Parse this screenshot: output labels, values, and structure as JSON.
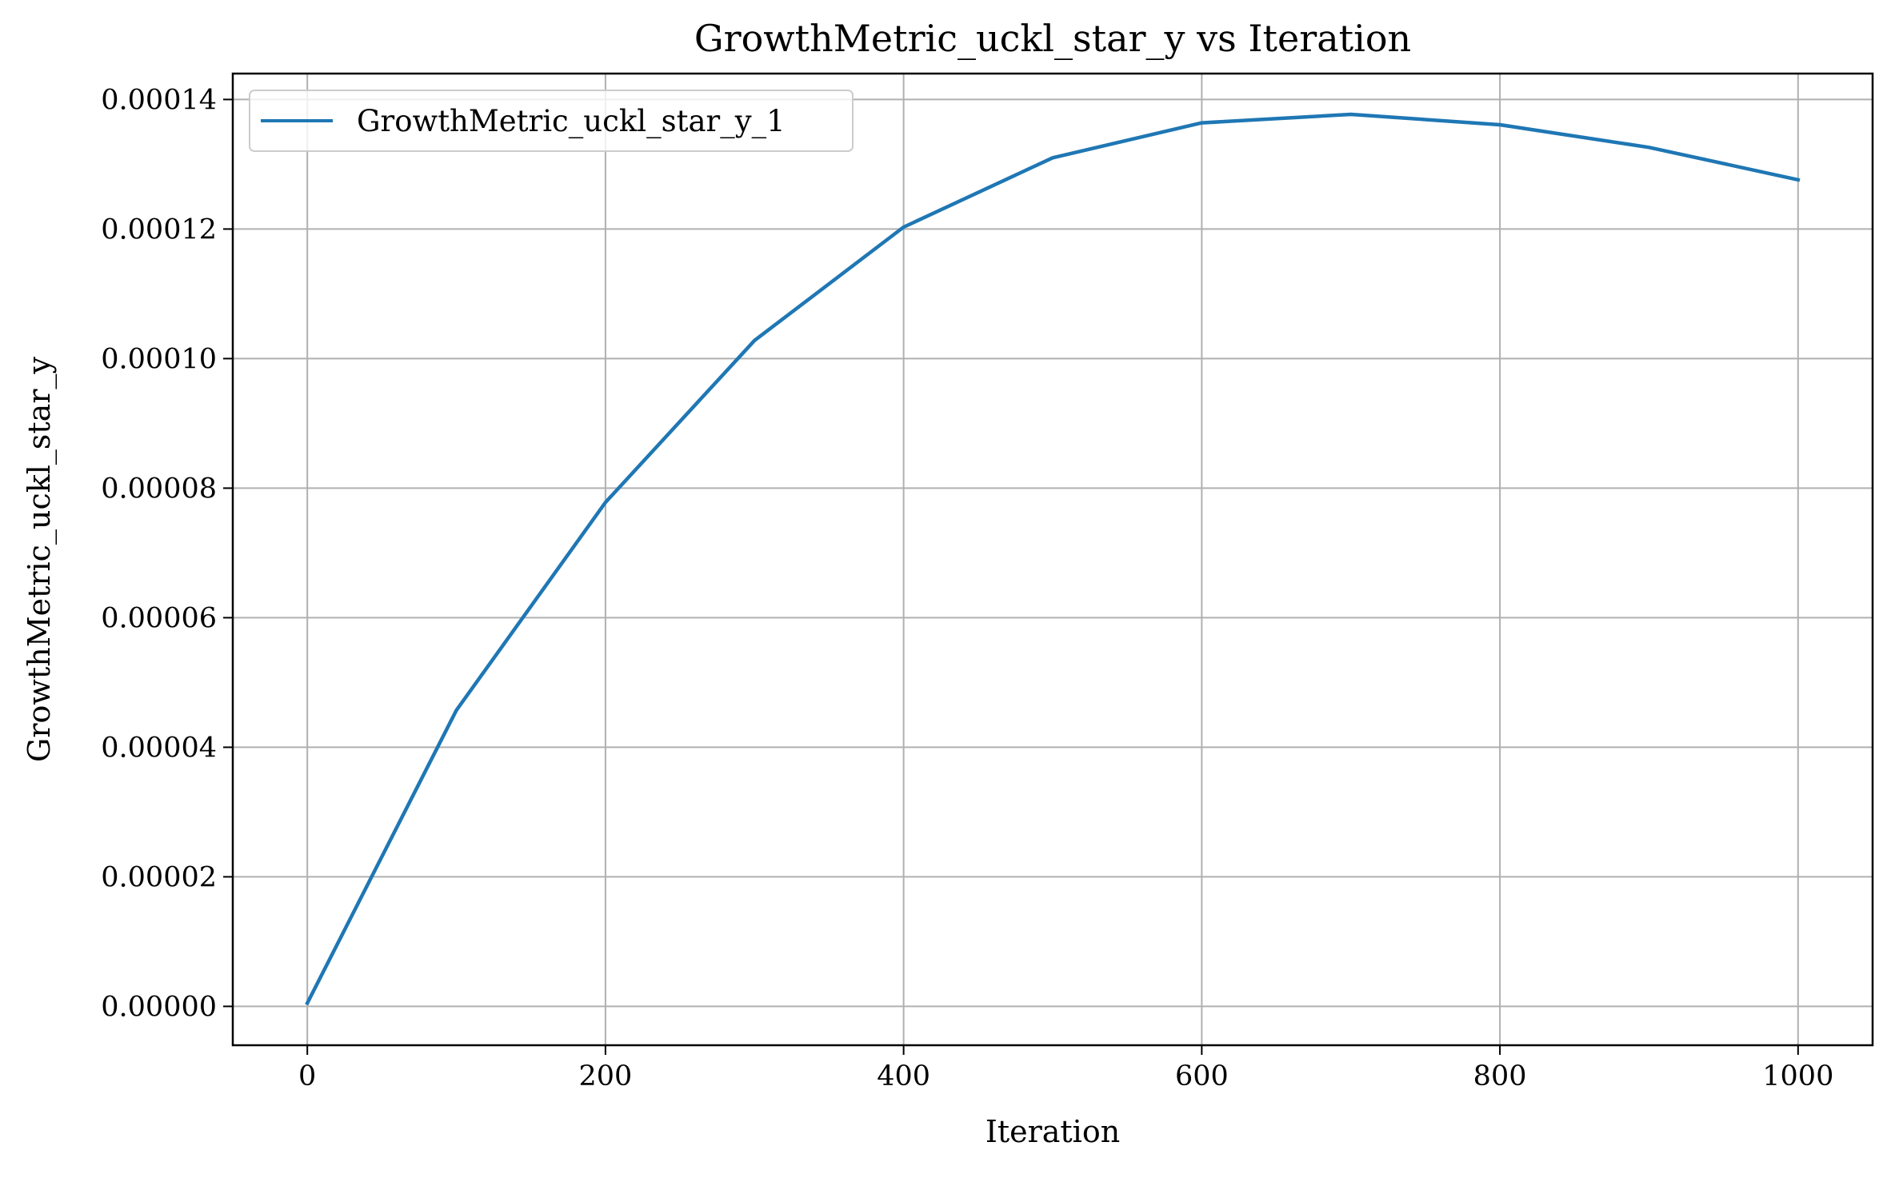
{
  "chart_data": {
    "type": "line",
    "title": "GrowthMetric_uckl_star_y vs Iteration",
    "xlabel": "Iteration",
    "ylabel": "GrowthMetric_uckl_star_y",
    "xlim": [
      -50,
      1050
    ],
    "ylim": [
      -6e-06,
      0.000144
    ],
    "xticks": [
      0,
      200,
      400,
      600,
      800,
      1000
    ],
    "xtick_labels": [
      "0",
      "200",
      "400",
      "600",
      "800",
      "1000"
    ],
    "yticks": [
      0,
      2e-05,
      4e-05,
      6e-05,
      8e-05,
      0.0001,
      0.00012,
      0.00014
    ],
    "ytick_labels": [
      "0.00000",
      "0.00002",
      "0.00004",
      "0.00006",
      "0.00008",
      "0.00010",
      "0.00012",
      "0.00014"
    ],
    "grid": true,
    "legend_position": "top-left",
    "series": [
      {
        "name": "GrowthMetric_uckl_star_y_1",
        "color": "#1f77b4",
        "x": [
          0,
          100,
          200,
          300,
          400,
          500,
          600,
          700,
          800,
          900,
          1000
        ],
        "y": [
          5e-07,
          4.57e-05,
          7.78e-05,
          0.0001028,
          0.0001203,
          0.000131,
          0.0001364,
          0.0001377,
          0.0001361,
          0.0001326,
          0.0001276
        ]
      }
    ]
  }
}
